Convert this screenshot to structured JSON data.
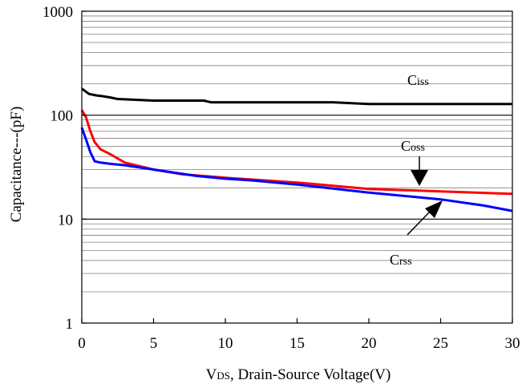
{
  "chart_data": {
    "type": "line",
    "title": "",
    "xlabel": "VDS, Drain-Source Voltage(V)",
    "xlabel_parts": {
      "main": "V",
      "sub": "DS",
      "rest": ", Drain-Source Voltage(V)"
    },
    "ylabel": "Capacitance---(pF)",
    "xlim": [
      0,
      30
    ],
    "ylim": [
      1,
      1000
    ],
    "yscale": "log",
    "grid": true,
    "x_ticks": [
      "0",
      "5",
      "10",
      "15",
      "20",
      "25",
      "30"
    ],
    "y_ticks": [
      "1",
      "10",
      "100",
      "1000"
    ],
    "series": [
      {
        "name": "Ciss",
        "label_parts": {
          "main": "C",
          "sub": "iss"
        },
        "color": "#000000",
        "points": [
          [
            0,
            180
          ],
          [
            0.5,
            160
          ],
          [
            1,
            155
          ],
          [
            1.5,
            152
          ],
          [
            2,
            148
          ],
          [
            2.5,
            143
          ],
          [
            3,
            142
          ],
          [
            5,
            138
          ],
          [
            8.5,
            138
          ],
          [
            9,
            133
          ],
          [
            12,
            133
          ],
          [
            17.5,
            133
          ],
          [
            20,
            128
          ],
          [
            25,
            128
          ],
          [
            30,
            128
          ]
        ]
      },
      {
        "name": "Coss",
        "label_parts": {
          "main": "C",
          "sub": "oss"
        },
        "color": "#ff0000",
        "points": [
          [
            0,
            112
          ],
          [
            0.3,
            95
          ],
          [
            0.6,
            70
          ],
          [
            0.9,
            55
          ],
          [
            1.3,
            47
          ],
          [
            2,
            42
          ],
          [
            3,
            35
          ],
          [
            5,
            30
          ],
          [
            7,
            27
          ],
          [
            10,
            25
          ],
          [
            15,
            22.5
          ],
          [
            20,
            19.5
          ],
          [
            25,
            18.5
          ],
          [
            30,
            17.5
          ]
        ]
      },
      {
        "name": "Crss",
        "label_parts": {
          "main": "C",
          "sub": "rss"
        },
        "color": "#0000ff",
        "points": [
          [
            0,
            76
          ],
          [
            0.3,
            58
          ],
          [
            0.6,
            44
          ],
          [
            0.9,
            36
          ],
          [
            1.3,
            35
          ],
          [
            2,
            34
          ],
          [
            3,
            33
          ],
          [
            5,
            30
          ],
          [
            8,
            26
          ],
          [
            10,
            24.5
          ],
          [
            12,
            23.5
          ],
          [
            15,
            21.5
          ],
          [
            20,
            18
          ],
          [
            25,
            15.5
          ],
          [
            28,
            13.5
          ],
          [
            30,
            12
          ]
        ]
      }
    ]
  }
}
